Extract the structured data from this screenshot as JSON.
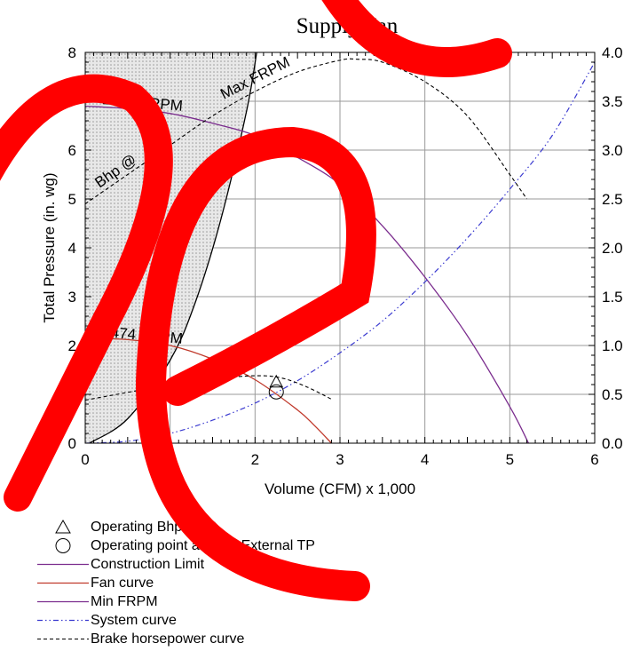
{
  "chart_data": {
    "type": "line",
    "title": "Supply Fan",
    "xlabel": "Volume (CFM) x 1,000",
    "ylabel": "Total Pressure (in. wg)",
    "xlim": [
      0,
      6
    ],
    "ylim": [
      0,
      8
    ],
    "y2lim": [
      0,
      4
    ],
    "x_ticks": [
      "0",
      "1",
      "2",
      "3",
      "4",
      "5",
      "6"
    ],
    "y_ticks": [
      "0",
      "1",
      "2",
      "3",
      "4",
      "5",
      "6",
      "7",
      "8"
    ],
    "y2_ticks": [
      "0.0",
      "0.5",
      "1.0",
      "1.5",
      "2.0",
      "2.5",
      "3.0",
      "3.5",
      "4.0"
    ],
    "grid": true,
    "annotations": [
      {
        "text": "2650 FRPM"
      },
      {
        "text": "1474 FRPM"
      },
      {
        "text": "Max FRPM"
      },
      {
        "text": "Bhp @"
      }
    ],
    "series": [
      {
        "name": "Construction Limit",
        "color": "#000000",
        "x": [
          0.05,
          0.5,
          1.0,
          1.3,
          1.6,
          1.9,
          2.02
        ],
        "y": [
          0,
          0.5,
          1.7,
          2.9,
          4.6,
          6.8,
          8.0
        ]
      },
      {
        "name": "Fan curve",
        "color": "#c0392b",
        "x": [
          0,
          0.5,
          1.0,
          1.5,
          2.0,
          2.5,
          2.7,
          2.9
        ],
        "y": [
          2.15,
          2.12,
          2.0,
          1.72,
          1.3,
          0.68,
          0.36,
          0
        ]
      },
      {
        "name": "Min FRPM",
        "color": "#7b2d8e",
        "x": [
          0,
          0.5,
          1.0,
          1.5,
          2.0,
          2.5,
          3.0,
          3.5,
          4.0,
          4.5,
          5.0,
          5.22
        ],
        "y": [
          6.9,
          6.85,
          6.75,
          6.55,
          6.3,
          5.85,
          5.3,
          4.45,
          3.4,
          2.2,
          0.75,
          0
        ]
      },
      {
        "name": "System curve",
        "color": "#3b3bd0",
        "x": [
          0,
          0.5,
          1.0,
          1.5,
          2.0,
          2.5,
          3.0,
          3.5,
          4.0,
          4.5,
          5.0,
          5.5,
          6.0
        ],
        "y": [
          0,
          0.04,
          0.2,
          0.47,
          0.82,
          1.28,
          1.85,
          2.5,
          3.3,
          4.2,
          5.2,
          6.3,
          7.8
        ]
      },
      {
        "name": "Brake horsepower curve",
        "color": "#000000",
        "axis": "right",
        "x": [
          0,
          0.5,
          1.0,
          1.5,
          2.0,
          2.3,
          2.6,
          2.9
        ],
        "y": [
          0.44,
          0.52,
          0.6,
          0.66,
          0.69,
          0.67,
          0.58,
          0.45
        ]
      },
      {
        "name": "Brake horsepower curve (Max FRPM)",
        "color": "#000000",
        "axis": "right",
        "x": [
          0,
          0.5,
          1.0,
          1.5,
          2.0,
          2.5,
          3.0,
          3.2,
          3.5,
          4.0,
          4.5,
          5.0,
          5.2
        ],
        "y": [
          2.45,
          2.75,
          3.05,
          3.35,
          3.6,
          3.8,
          3.92,
          3.93,
          3.9,
          3.7,
          3.35,
          2.75,
          2.5
        ]
      }
    ],
    "operating_points": [
      {
        "name": "Operating Bhp point",
        "x": 2.25,
        "y": 0.62,
        "axis": "right",
        "marker": "triangle"
      },
      {
        "name": "Operating point at Total External TP",
        "x": 2.25,
        "y": 1.05,
        "marker": "circle"
      }
    ],
    "legend": [
      {
        "label": "Operating Bhp point",
        "symbol": "triangle"
      },
      {
        "label": "Operating point at Total External TP",
        "symbol": "circle"
      },
      {
        "label": "Construction Limit",
        "symbol": "line",
        "color": "#7b2d8e"
      },
      {
        "label": "Fan curve",
        "symbol": "line",
        "color": "#c0392b"
      },
      {
        "label": "Min FRPM",
        "symbol": "line",
        "color": "#7b2d8e"
      },
      {
        "label": "System curve",
        "symbol": "dashdot",
        "color": "#3b3bd0"
      },
      {
        "label": "Brake horsepower curve",
        "symbol": "dash",
        "color": "#000000"
      }
    ],
    "legend_position": "bottom-left"
  }
}
